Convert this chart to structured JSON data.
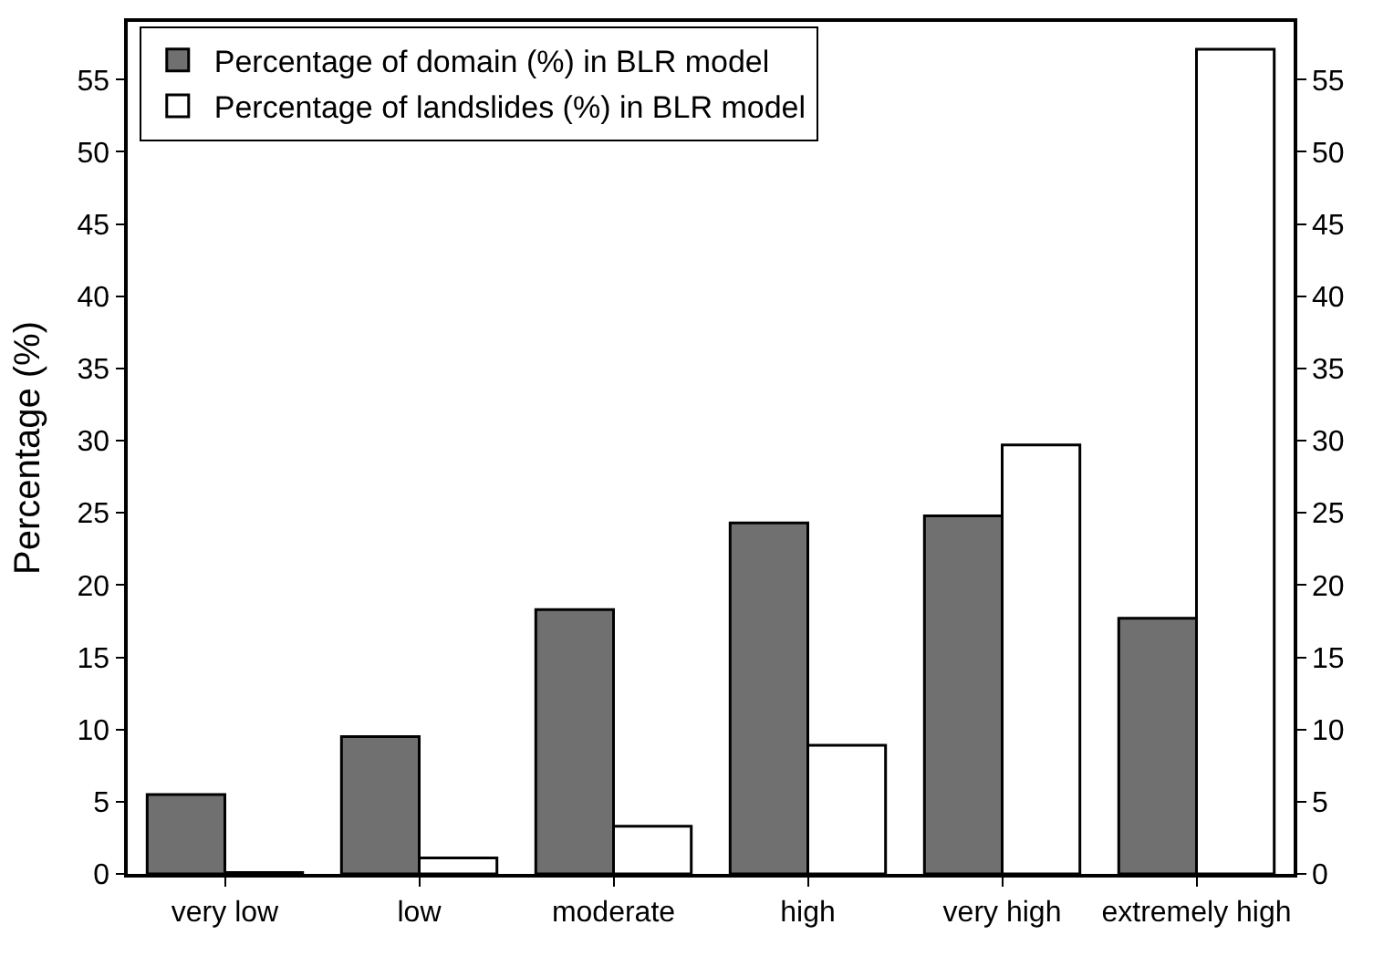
{
  "chart_data": {
    "type": "bar",
    "ylabel": "Percentage (%)",
    "categories": [
      "very low",
      "low",
      "moderate",
      "high",
      "very high",
      "extremely high"
    ],
    "series": [
      {
        "name": "Percentage of domain (%) in BLR model",
        "color": "#707070",
        "values": [
          5.5,
          9.5,
          18.3,
          24.3,
          24.8,
          17.7
        ]
      },
      {
        "name": "Percentage of landslides (%) in BLR model",
        "color": "#ffffff",
        "values": [
          0.1,
          1.1,
          3.3,
          8.9,
          29.7,
          57.1
        ]
      }
    ],
    "ylim": [
      0,
      59
    ],
    "yticks": [
      0,
      5,
      10,
      15,
      20,
      25,
      30,
      35,
      40,
      45,
      50,
      55
    ],
    "y2lim": [
      0,
      59
    ],
    "y2ticks": [
      0,
      5,
      10,
      15,
      20,
      25,
      30,
      35,
      40,
      45,
      50,
      55
    ],
    "legend": "top left"
  }
}
